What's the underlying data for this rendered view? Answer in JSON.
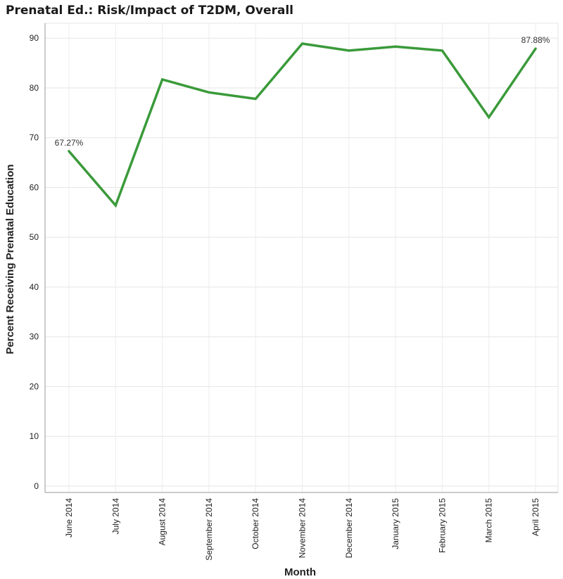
{
  "chart_data": {
    "type": "line",
    "title": "Prenatal Ed.: Risk/Impact of T2DM, Overall",
    "xlabel": "Month",
    "ylabel": "Percent Receiving Prenatal Education",
    "ylim": [
      0,
      93
    ],
    "yticks": [
      0,
      10,
      20,
      30,
      40,
      50,
      60,
      70,
      80,
      90
    ],
    "grid": true,
    "legend": "none",
    "categories": [
      "June 2014",
      "July 2014",
      "August 2014",
      "September 2014",
      "October 2014",
      "November 2014",
      "December 2014",
      "January 2015",
      "February 2015",
      "March 2015",
      "April 2015"
    ],
    "series": [
      {
        "values": [
          67.27,
          56.4,
          81.7,
          79.1,
          77.8,
          88.9,
          87.5,
          88.3,
          87.5,
          74.1,
          87.88
        ],
        "color": "#3a9a3a"
      }
    ],
    "data_labels": [
      {
        "index": 0,
        "text": "67.27%"
      },
      {
        "index": 10,
        "text": "87.88%"
      }
    ]
  }
}
